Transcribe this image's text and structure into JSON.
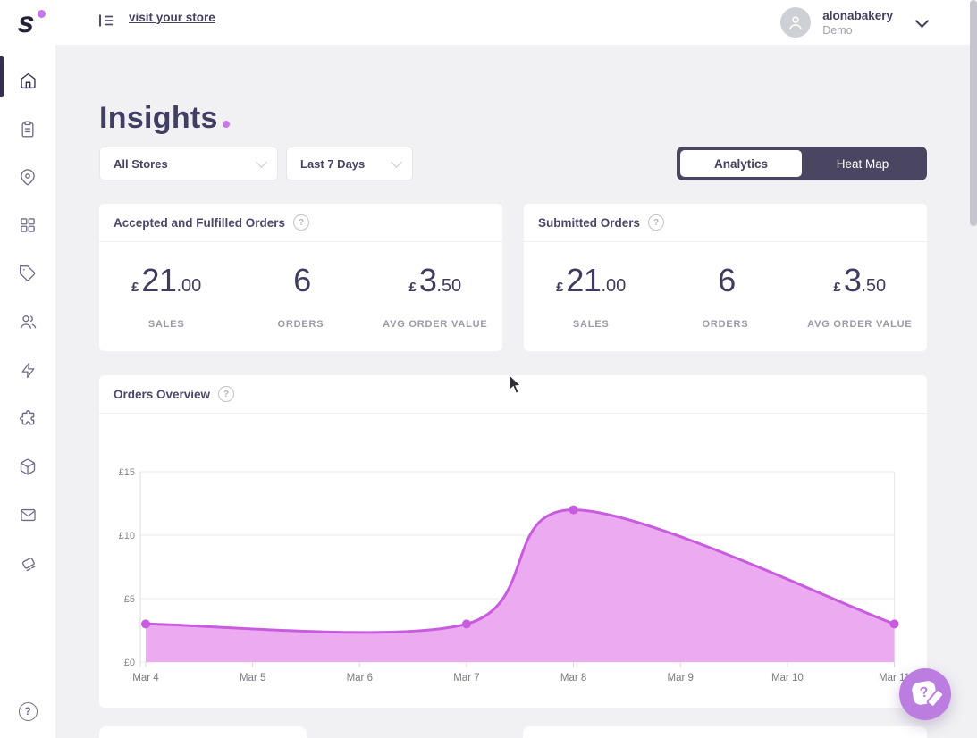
{
  "topbar": {
    "logo_letter": "s",
    "visit_store_label": "visit your store",
    "account": {
      "name": "alonabakery",
      "plan": "Demo"
    }
  },
  "sidebar": {
    "active_item": "home",
    "items": [
      "home",
      "orders",
      "locations",
      "menu-grid",
      "tags",
      "customers",
      "activity",
      "integrations",
      "inventory",
      "messages",
      "discounts"
    ],
    "help": "help"
  },
  "page": {
    "title": "Insights"
  },
  "filters": {
    "store_select": {
      "value": "All Stores"
    },
    "date_range_select": {
      "value": "Last 7 Days"
    }
  },
  "view_toggle": {
    "selected": "Analytics",
    "analytics_label": "Analytics",
    "heatmap_label": "Heat Map"
  },
  "stat_cards": [
    {
      "title": "Accepted and Fulfilled Orders",
      "metrics": [
        {
          "prefix": "£",
          "value": "21",
          "decimals": ".00",
          "label": "SALES"
        },
        {
          "prefix": "",
          "value": "6",
          "decimals": "",
          "label": "ORDERS"
        },
        {
          "prefix": "£",
          "value": "3",
          "decimals": ".50",
          "label": "AVG ORDER VALUE"
        }
      ]
    },
    {
      "title": "Submitted Orders",
      "metrics": [
        {
          "prefix": "£",
          "value": "21",
          "decimals": ".00",
          "label": "SALES"
        },
        {
          "prefix": "",
          "value": "6",
          "decimals": "",
          "label": "ORDERS"
        },
        {
          "prefix": "£",
          "value": "3",
          "decimals": ".50",
          "label": "AVG ORDER VALUE"
        }
      ]
    }
  ],
  "chart_card": {
    "title": "Orders Overview"
  },
  "chart_data": {
    "type": "area",
    "title": "Orders Overview",
    "xlabel": "",
    "ylabel": "£",
    "x_categories": [
      "Mar 4",
      "Mar 5",
      "Mar 6",
      "Mar 7",
      "Mar 8",
      "Mar 9",
      "Mar 10",
      "Mar 11"
    ],
    "points": [
      {
        "x": "Mar 4",
        "y": 3
      },
      {
        "x": "Mar 7",
        "y": 3
      },
      {
        "x": "Mar 8",
        "y": 12
      },
      {
        "x": "Mar 11",
        "y": 3
      }
    ],
    "interpolated_values_by_day": [
      3,
      2.4,
      2,
      3,
      12,
      10.5,
      6.5,
      3
    ],
    "y_ticks": [
      {
        "label": "£0",
        "value": 0
      },
      {
        "label": "£5",
        "value": 5
      },
      {
        "label": "£10",
        "value": 10
      },
      {
        "label": "£15",
        "value": 15
      }
    ],
    "ylim": [
      0,
      15
    ],
    "grid": "horizontal",
    "legend": "none",
    "line_color": "#c85be0",
    "fill_color": "#ecabf1",
    "marker_color": "#c85be0"
  },
  "misc": {
    "help_glyph": "?"
  },
  "colors": {
    "accent_purple": "#c777e8",
    "brand_dark": "#3e3a5d",
    "toggle_bg": "#4a4560",
    "page_bg": "#f1f1f4",
    "scrollbar": "#c6c5cd"
  }
}
